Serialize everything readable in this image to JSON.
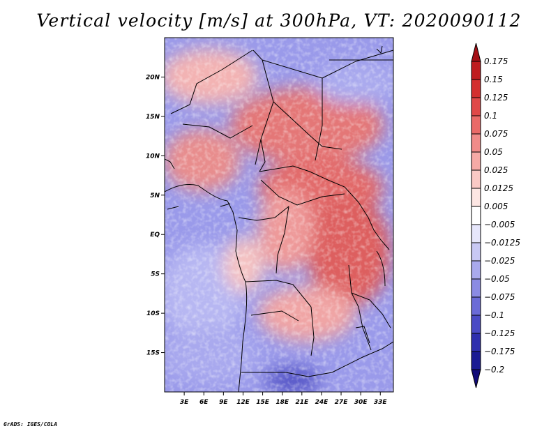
{
  "title": "Vertical velocity [m/s] at 300hPa, VT: 2020090112",
  "credit": "GrADS: IGES/COLA",
  "map": {
    "lon_range": [
      0,
      35
    ],
    "lat_range": [
      -20,
      25
    ],
    "lon_ticks": [
      "3E",
      "6E",
      "9E",
      "12E",
      "15E",
      "18E",
      "21E",
      "24E",
      "27E",
      "30E",
      "33E"
    ],
    "lat_ticks": [
      "20N",
      "15N",
      "10N",
      "5N",
      "EQ",
      "5S",
      "10S",
      "15S"
    ]
  },
  "legend": {
    "labels": [
      "0.175",
      "0.15",
      "0.125",
      "0.1",
      "0.075",
      "0.05",
      "0.025",
      "0.0125",
      "0.005",
      "-0.005",
      "-0.0125",
      "-0.025",
      "-0.05",
      "-0.075",
      "-0.1",
      "-0.125",
      "-0.175",
      "-0.2"
    ],
    "colors": [
      "#a50f15",
      "#bf1c1f",
      "#d32f2f",
      "#e04848",
      "#ea6a68",
      "#f08b89",
      "#f6aaa6",
      "#fac9c5",
      "#fde6e3",
      "#ffffff",
      "#e6e6fb",
      "#c8c8f4",
      "#a9a9ec",
      "#8b8be3",
      "#6b6bd7",
      "#4b4bc5",
      "#2f2fae",
      "#1b1b93",
      "#100a78"
    ]
  }
}
